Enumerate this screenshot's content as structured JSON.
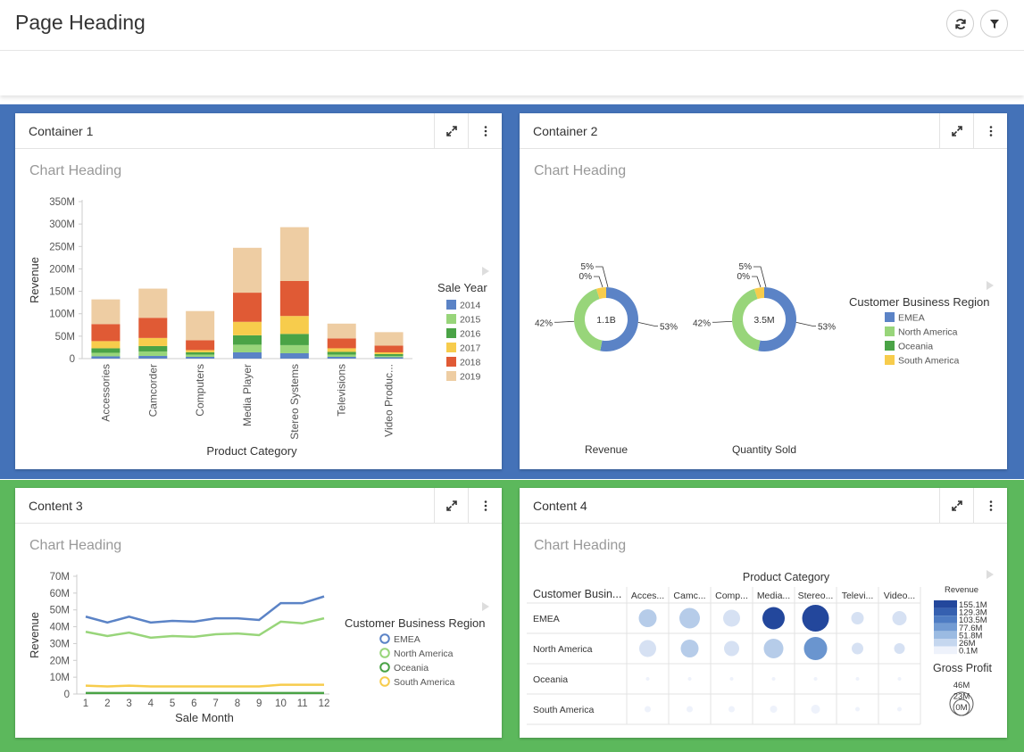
{
  "page": {
    "title": "Page Heading"
  },
  "colors": {
    "blue_band": "#4472b8",
    "green_band": "#5cb85c",
    "s2014": "#5b83c6",
    "s2015": "#98d57a",
    "s2016": "#4aa346",
    "s2017": "#f7cc4c",
    "s2018": "#e05a35",
    "s2019": "#eecda3"
  },
  "icons": {
    "refresh": "refresh-icon",
    "filter": "filter-icon",
    "expand": "expand-icon",
    "more": "more-vertical-icon",
    "legend_toggle": "caret-right-icon"
  },
  "cards": [
    {
      "title": "Container 1",
      "chart_heading": "Chart Heading"
    },
    {
      "title": "Container 2",
      "chart_heading": "Chart Heading"
    },
    {
      "title": "Content 3",
      "chart_heading": "Chart Heading"
    },
    {
      "title": "Content 4",
      "chart_heading": "Chart Heading"
    }
  ],
  "chart_data": [
    {
      "type": "bar",
      "stacked": true,
      "title": "Chart Heading",
      "xlabel": "Product Category",
      "ylabel": "Revenue",
      "ylim": [
        0,
        350
      ],
      "yticks": [
        "0",
        "50M",
        "100M",
        "150M",
        "200M",
        "250M",
        "300M",
        "350M"
      ],
      "categories": [
        "Accessories",
        "Camcorder",
        "Computers",
        "Media Player",
        "Stereo Systems",
        "Televisions",
        "Video Produc..."
      ],
      "legend_title": "Sale Year",
      "series": [
        {
          "name": "2014",
          "color": "#5b83c6",
          "values": [
            5,
            6,
            4,
            14,
            12,
            4,
            3
          ]
        },
        {
          "name": "2015",
          "color": "#98d57a",
          "values": [
            8,
            10,
            5,
            17,
            18,
            5,
            3
          ]
        },
        {
          "name": "2016",
          "color": "#4aa346",
          "values": [
            10,
            12,
            5,
            21,
            25,
            6,
            4
          ]
        },
        {
          "name": "2017",
          "color": "#f7cc4c",
          "values": [
            16,
            18,
            5,
            30,
            40,
            8,
            4
          ]
        },
        {
          "name": "2018",
          "color": "#e05a35",
          "values": [
            38,
            45,
            22,
            65,
            78,
            22,
            15
          ]
        },
        {
          "name": "2019",
          "color": "#eecda3",
          "values": [
            55,
            65,
            65,
            100,
            120,
            33,
            30
          ]
        }
      ]
    },
    {
      "type": "pie",
      "donut": true,
      "title": "Chart Heading",
      "legend_title": "Customer Business Region",
      "legend": [
        {
          "name": "EMEA",
          "color": "#5b83c6"
        },
        {
          "name": "North America",
          "color": "#98d57a"
        },
        {
          "name": "Oceania",
          "color": "#4aa346"
        },
        {
          "name": "South America",
          "color": "#f7cc4c"
        }
      ],
      "pies": [
        {
          "name": "Revenue",
          "center": "1.1B",
          "values": [
            53,
            42,
            0,
            5
          ],
          "labels": [
            "53%",
            "42%",
            "0%",
            "5%"
          ]
        },
        {
          "name": "Quantity Sold",
          "center": "3.5M",
          "values": [
            53,
            42,
            0,
            5
          ],
          "labels": [
            "53%",
            "42%",
            "0%",
            "5%"
          ]
        }
      ]
    },
    {
      "type": "line",
      "title": "Chart Heading",
      "xlabel": "Sale Month",
      "ylabel": "Revenue",
      "ylim": [
        0,
        70
      ],
      "yticks": [
        "0",
        "10M",
        "20M",
        "30M",
        "40M",
        "50M",
        "60M",
        "70M"
      ],
      "x": [
        "1",
        "2",
        "3",
        "4",
        "5",
        "6",
        "7",
        "8",
        "9",
        "10",
        "11",
        "12"
      ],
      "legend_title": "Customer Business Region",
      "series": [
        {
          "name": "EMEA",
          "color": "#5b83c6",
          "values": [
            46,
            42.5,
            46,
            42.5,
            43.5,
            43,
            45,
            45,
            44,
            54,
            54,
            58
          ]
        },
        {
          "name": "North America",
          "color": "#98d57a",
          "values": [
            37,
            34.5,
            36.5,
            33.5,
            34.5,
            34,
            35.5,
            36,
            35,
            43,
            42,
            45
          ]
        },
        {
          "name": "Oceania",
          "color": "#4aa346",
          "values": [
            0.6,
            0.6,
            0.6,
            0.6,
            0.6,
            0.6,
            0.6,
            0.6,
            0.6,
            0.6,
            0.6,
            0.6
          ]
        },
        {
          "name": "South America",
          "color": "#f7cc4c",
          "values": [
            5,
            4.5,
            5,
            4.5,
            4.5,
            4.5,
            4.5,
            4.5,
            4.5,
            5.5,
            5.5,
            5.5
          ]
        }
      ]
    },
    {
      "type": "heatmap",
      "title": "Chart Heading",
      "column_title": "Product Category",
      "row_title": "Customer Busin...",
      "columns": [
        "Acces...",
        "Camc...",
        "Comp...",
        "Media...",
        "Stereo...",
        "Televi...",
        "Video..."
      ],
      "rows": [
        "EMEA",
        "North America",
        "Oceania",
        "South America"
      ],
      "revenue": [
        [
          40,
          52,
          36,
          150,
          155,
          22,
          25
        ],
        [
          38,
          44,
          26,
          58,
          112,
          18,
          14
        ],
        [
          1,
          1,
          1,
          1,
          1,
          1,
          1
        ],
        [
          5,
          6,
          6,
          8,
          12,
          3,
          3
        ]
      ],
      "size": [
        [
          20,
          23,
          19,
          25,
          30,
          14,
          16
        ],
        [
          19,
          20,
          17,
          22,
          26,
          13,
          12
        ],
        [
          4,
          4,
          4,
          4,
          4,
          4,
          4
        ],
        [
          7,
          7,
          7,
          8,
          10,
          5,
          5
        ]
      ],
      "color_legend_title": "Revenue",
      "color_legend": [
        "155.1M",
        "129.3M",
        "103.5M",
        "77.6M",
        "51.8M",
        "26M",
        "0.1M"
      ],
      "size_legend_title": "Gross Profit",
      "size_legend": [
        "46M",
        "23M",
        "0M"
      ]
    }
  ]
}
